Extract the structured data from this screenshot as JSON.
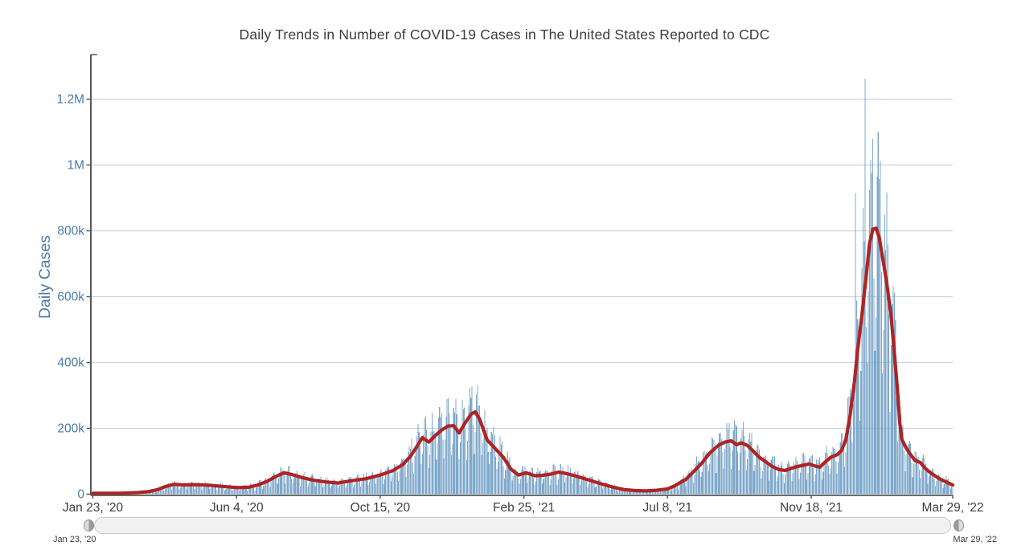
{
  "title": "Daily Trends in Number of COVID-19 Cases in The United States Reported to CDC",
  "y_axis": {
    "label": "Daily Cases",
    "ticks": [
      {
        "label": "0",
        "value": 0
      },
      {
        "label": "200k",
        "value": 200000
      },
      {
        "label": "400k",
        "value": 400000
      },
      {
        "label": "600k",
        "value": 600000
      },
      {
        "label": "800k",
        "value": 800000
      },
      {
        "label": "1M",
        "value": 1000000
      },
      {
        "label": "1.2M",
        "value": 1200000
      }
    ]
  },
  "x_axis": {
    "ticks": [
      {
        "label": "Jan 23, '20",
        "day": 0
      },
      {
        "label": "Jun 4, '20",
        "day": 133
      },
      {
        "label": "Oct 15, '20",
        "day": 266
      },
      {
        "label": "Feb 25, '21",
        "day": 399
      },
      {
        "label": "Jul 8, '21",
        "day": 532
      },
      {
        "label": "Nov 18, '21",
        "day": 665
      },
      {
        "label": "Mar 29, '22",
        "day": 796
      }
    ]
  },
  "slider": {
    "start_label": "Jan 23, '20",
    "end_label": "Mar 29, '22"
  },
  "colors": {
    "bar": "#7FA8CB",
    "line": "#AE2424",
    "grid": "#C4D7E8",
    "axis": "#575757",
    "blue_text": "#4B79A9",
    "title_text": "#3C3C3C",
    "x_label_text": "#3E3E3E"
  },
  "chart_data": {
    "type": "bar",
    "title": "Daily Trends in Number of COVID-19 Cases in The United States Reported to CDC",
    "xlabel": "",
    "ylabel": "Daily Cases",
    "x_unit": "days since Jan 23, 2020",
    "x_range_labels": [
      "Jan 23, '20",
      "Mar 29, '22"
    ],
    "total_days": 797,
    "ylim": [
      0,
      1330000
    ],
    "grid": true,
    "legend": "none",
    "series": [
      {
        "name": "Daily Cases",
        "type": "bar"
      },
      {
        "name": "7-day moving average",
        "type": "line"
      }
    ],
    "moving_average_keypoints": [
      [
        0,
        3000
      ],
      [
        26,
        3000
      ],
      [
        42,
        5000
      ],
      [
        52,
        8000
      ],
      [
        60,
        14000
      ],
      [
        67,
        23000
      ],
      [
        75,
        30000
      ],
      [
        84,
        28000
      ],
      [
        95,
        29000
      ],
      [
        107,
        27000
      ],
      [
        119,
        24000
      ],
      [
        134,
        20000
      ],
      [
        144,
        21000
      ],
      [
        153,
        28000
      ],
      [
        162,
        40000
      ],
      [
        170,
        55000
      ],
      [
        177,
        65000
      ],
      [
        184,
        60000
      ],
      [
        194,
        50000
      ],
      [
        205,
        42000
      ],
      [
        216,
        37000
      ],
      [
        227,
        34000
      ],
      [
        238,
        40000
      ],
      [
        253,
        47000
      ],
      [
        266,
        58000
      ],
      [
        278,
        72000
      ],
      [
        287,
        90000
      ],
      [
        294,
        115000
      ],
      [
        300,
        145000
      ],
      [
        305,
        172000
      ],
      [
        311,
        158000
      ],
      [
        317,
        178000
      ],
      [
        323,
        195000
      ],
      [
        329,
        207000
      ],
      [
        334,
        208000
      ],
      [
        339,
        186000
      ],
      [
        345,
        218000
      ],
      [
        350,
        243000
      ],
      [
        354,
        250000
      ],
      [
        358,
        228000
      ],
      [
        365,
        165000
      ],
      [
        372,
        140000
      ],
      [
        380,
        112000
      ],
      [
        387,
        76000
      ],
      [
        394,
        58000
      ],
      [
        401,
        65000
      ],
      [
        409,
        56000
      ],
      [
        416,
        57000
      ],
      [
        424,
        61000
      ],
      [
        431,
        67000
      ],
      [
        438,
        63000
      ],
      [
        445,
        57000
      ],
      [
        452,
        50000
      ],
      [
        460,
        42000
      ],
      [
        472,
        30000
      ],
      [
        482,
        21000
      ],
      [
        492,
        14000
      ],
      [
        502,
        11000
      ],
      [
        512,
        10000
      ],
      [
        522,
        12000
      ],
      [
        532,
        16000
      ],
      [
        539,
        26000
      ],
      [
        549,
        45000
      ],
      [
        556,
        68000
      ],
      [
        564,
        95000
      ],
      [
        571,
        125000
      ],
      [
        579,
        148000
      ],
      [
        585,
        158000
      ],
      [
        591,
        162000
      ],
      [
        596,
        150000
      ],
      [
        600,
        156000
      ],
      [
        606,
        148000
      ],
      [
        611,
        132000
      ],
      [
        617,
        112000
      ],
      [
        623,
        98000
      ],
      [
        629,
        84000
      ],
      [
        635,
        75000
      ],
      [
        641,
        72000
      ],
      [
        646,
        78000
      ],
      [
        652,
        84000
      ],
      [
        658,
        88000
      ],
      [
        663,
        92000
      ],
      [
        668,
        86000
      ],
      [
        673,
        82000
      ],
      [
        678,
        98000
      ],
      [
        683,
        112000
      ],
      [
        689,
        120000
      ],
      [
        693,
        132000
      ],
      [
        697,
        165000
      ],
      [
        701,
        240000
      ],
      [
        705,
        340000
      ],
      [
        708,
        440000
      ],
      [
        712,
        545000
      ],
      [
        716,
        665000
      ],
      [
        719,
        760000
      ],
      [
        722,
        805000
      ],
      [
        725,
        808000
      ],
      [
        728,
        780000
      ],
      [
        731,
        720000
      ],
      [
        735,
        640000
      ],
      [
        739,
        540000
      ],
      [
        742,
        430000
      ],
      [
        745,
        310000
      ],
      [
        747,
        215000
      ],
      [
        749,
        165000
      ],
      [
        753,
        140000
      ],
      [
        757,
        120000
      ],
      [
        761,
        103000
      ],
      [
        766,
        96000
      ],
      [
        770,
        80000
      ],
      [
        775,
        66000
      ],
      [
        779,
        57000
      ],
      [
        784,
        46000
      ],
      [
        790,
        37000
      ],
      [
        794,
        31000
      ],
      [
        796,
        28000
      ]
    ],
    "outlier_bars": [
      [
        350,
        293000
      ],
      [
        588,
        198000
      ],
      [
        706,
        915000
      ],
      [
        713,
        870000
      ],
      [
        715,
        1262000
      ],
      [
        726,
        965000
      ],
      [
        729,
        1012000
      ]
    ],
    "bar_reconstruction": {
      "weekday_pattern_from_day0": [
        1.28,
        1.24,
        0.9,
        0.52,
        0.78,
        1.12,
        1.3
      ],
      "jitter_base": 0.84,
      "jitter_span": 0.3
    }
  }
}
